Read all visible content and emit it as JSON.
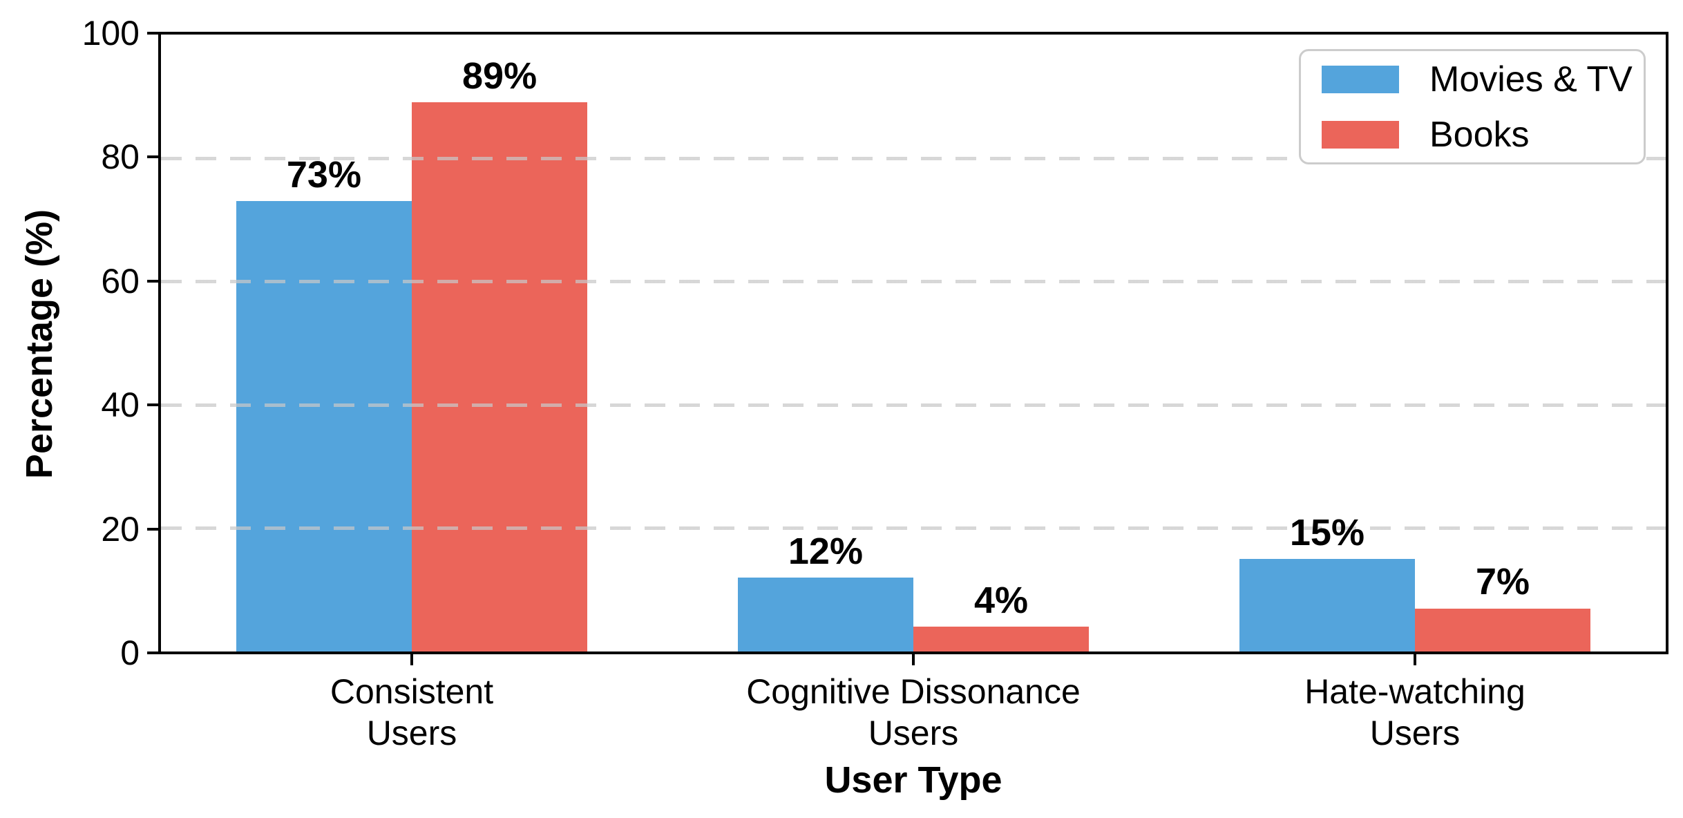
{
  "chart_data": {
    "type": "bar",
    "title": "",
    "xlabel": "User Type",
    "ylabel": "Percentage (%)",
    "ylim": [
      0,
      100
    ],
    "yticks": [
      0,
      20,
      40,
      60,
      80,
      100
    ],
    "categories": [
      [
        "Consistent",
        "Users"
      ],
      [
        "Cognitive Dissonance",
        "Users"
      ],
      [
        "Hate-watching",
        "Users"
      ]
    ],
    "series": [
      {
        "name": "Movies & TV",
        "color": "#54A4DC",
        "values": [
          73,
          12,
          15
        ],
        "value_labels": [
          "73%",
          "12%",
          "15%"
        ]
      },
      {
        "name": "Books",
        "color": "#EB655A",
        "values": [
          89,
          4,
          7
        ],
        "value_labels": [
          "89%",
          "4%",
          "7%"
        ]
      }
    ],
    "legend": {
      "position": "upper right",
      "entries": [
        "Movies & TV",
        "Books"
      ]
    },
    "grid": {
      "axis": "y",
      "style": "dashed",
      "color": "#D3D3D3"
    }
  },
  "colors": {
    "background": "#FFFFFF",
    "spine": "#000000",
    "text": "#000000",
    "legend_border": "#CCCCCC"
  }
}
